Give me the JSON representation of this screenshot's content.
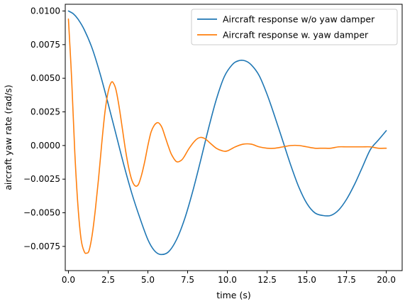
{
  "chart_data": {
    "type": "line",
    "xlabel": "time (s)",
    "ylabel": "aircraft yaw rate (rad/s)",
    "xlim": [
      -0.2,
      21.0
    ],
    "ylim": [
      -0.0093,
      0.0105
    ],
    "x_ticks": [
      {
        "value": 0.0,
        "label": "0.0"
      },
      {
        "value": 2.5,
        "label": "2.5"
      },
      {
        "value": 5.0,
        "label": "5.0"
      },
      {
        "value": 7.5,
        "label": "7.5"
      },
      {
        "value": 10.0,
        "label": "10.0"
      },
      {
        "value": 12.5,
        "label": "12.5"
      },
      {
        "value": 15.0,
        "label": "15.0"
      },
      {
        "value": 17.5,
        "label": "17.5"
      },
      {
        "value": 20.0,
        "label": "20.0"
      }
    ],
    "y_ticks": [
      {
        "value": -0.0075,
        "label": "−0.0075"
      },
      {
        "value": -0.005,
        "label": "−0.0050"
      },
      {
        "value": -0.0025,
        "label": "−0.0025"
      },
      {
        "value": 0.0,
        "label": "0.0000"
      },
      {
        "value": 0.0025,
        "label": "0.0025"
      },
      {
        "value": 0.005,
        "label": "0.0050"
      },
      {
        "value": 0.0075,
        "label": "0.0075"
      },
      {
        "value": 0.01,
        "label": "0.0100"
      }
    ],
    "grid": false,
    "legend_position": "top-right",
    "series": [
      {
        "name": "Aircraft response w/o yaw damper",
        "color": "#1f77b4",
        "x": [
          0,
          0.3,
          0.6,
          1.0,
          1.5,
          2.0,
          2.5,
          3.0,
          3.5,
          4.0,
          4.5,
          5.0,
          5.4,
          5.8,
          6.3,
          6.8,
          7.3,
          7.8,
          8.3,
          8.8,
          9.3,
          9.8,
          10.3,
          10.7,
          11.1,
          11.5,
          12.0,
          12.5,
          13.0,
          13.5,
          14.0,
          14.5,
          15.0,
          15.5,
          16.0,
          16.5,
          17.0,
          17.5,
          18.0,
          18.5,
          19.0,
          19.5,
          20.0
        ],
        "y": [
          0.01,
          0.0098,
          0.0094,
          0.0086,
          0.0072,
          0.0053,
          0.0031,
          0.0008,
          -0.0015,
          -0.0036,
          -0.0054,
          -0.007,
          -0.0078,
          -0.0081,
          -0.0079,
          -0.007,
          -0.0055,
          -0.0035,
          -0.0012,
          0.0012,
          0.0034,
          0.0051,
          0.006,
          0.0063,
          0.0063,
          0.006,
          0.0052,
          0.0038,
          0.0021,
          0.0003,
          -0.0015,
          -0.0031,
          -0.0043,
          -0.005,
          -0.0052,
          -0.0052,
          -0.0048,
          -0.004,
          -0.0029,
          -0.0016,
          -0.0003,
          0.0004,
          0.0011
        ]
      },
      {
        "name": "Aircraft response w. yaw damper",
        "color": "#ff7f0e",
        "x": [
          0,
          0.2,
          0.4,
          0.6,
          0.8,
          1.0,
          1.15,
          1.3,
          1.5,
          1.7,
          1.9,
          2.1,
          2.3,
          2.5,
          2.7,
          2.85,
          3.0,
          3.2,
          3.4,
          3.6,
          3.8,
          4.0,
          4.2,
          4.4,
          4.6,
          4.8,
          5.0,
          5.2,
          5.4,
          5.6,
          5.75,
          5.9,
          6.1,
          6.3,
          6.5,
          6.8,
          7.1,
          7.3,
          7.6,
          8.0,
          8.3,
          8.6,
          8.9,
          9.3,
          9.7,
          10.0,
          10.5,
          11.0,
          11.5,
          12.0,
          12.5,
          13.0,
          13.5,
          14.0,
          14.5,
          15.0,
          15.5,
          16.0,
          16.5,
          17.0,
          17.5,
          18.0,
          18.5,
          19.0,
          19.5,
          20.0
        ],
        "y": [
          0.0094,
          0.005,
          -0.0005,
          -0.0045,
          -0.007,
          -0.0079,
          -0.008,
          -0.0078,
          -0.0066,
          -0.0047,
          -0.0024,
          0.0002,
          0.0025,
          0.004,
          0.0047,
          0.0046,
          0.0041,
          0.0028,
          0.0012,
          -0.0004,
          -0.0017,
          -0.0026,
          -0.003,
          -0.0029,
          -0.0022,
          -0.0012,
          0.0,
          0.001,
          0.0015,
          0.0017,
          0.0016,
          0.0013,
          0.0006,
          -0.0001,
          -0.0007,
          -0.0012,
          -0.0011,
          -0.0008,
          -0.0002,
          0.0004,
          0.0006,
          0.0005,
          0.0002,
          -0.0002,
          -0.0004,
          -0.0004,
          -0.0001,
          0.0001,
          0.0001,
          -0.0001,
          -0.0002,
          -0.0002,
          -0.0001,
          0.0,
          0.0,
          -0.0001,
          -0.0002,
          -0.0002,
          -0.0002,
          -0.0001,
          -0.0001,
          -0.0001,
          -0.0001,
          -0.0001,
          -0.0002,
          -0.0002
        ]
      }
    ]
  }
}
